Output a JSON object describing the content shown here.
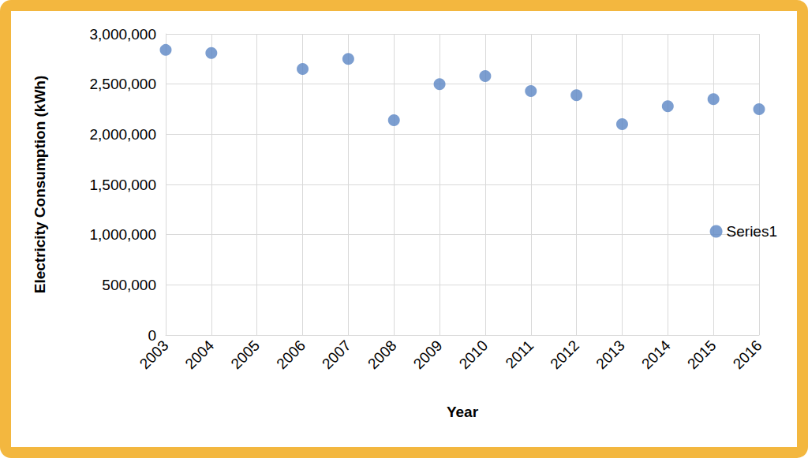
{
  "chart_data": {
    "type": "scatter",
    "x_label": "Year",
    "y_label": "Electricity Consumption (kWh)",
    "categories": [
      "2003",
      "2004",
      "2005",
      "2006",
      "2007",
      "2008",
      "2009",
      "2010",
      "2011",
      "2012",
      "2013",
      "2014",
      "2015",
      "2016"
    ],
    "series": [
      {
        "name": "Series1",
        "color": "#5b86c4",
        "marker": "circle",
        "values": [
          2840000,
          2810000,
          null,
          2650000,
          2750000,
          2140000,
          2500000,
          2580000,
          2430000,
          2390000,
          2100000,
          2280000,
          2350000,
          2250000
        ]
      }
    ],
    "ylim": [
      0,
      3000000
    ],
    "yticks": [
      0,
      {
        "value": 500000,
        "label": "500,000"
      },
      {
        "value": 1000000,
        "label": "1,000,000"
      },
      {
        "value": 1500000,
        "label": "1,500,000"
      },
      {
        "value": 2000000,
        "label": "2,000,000"
      },
      {
        "value": 2500000,
        "label": "2,500,000"
      },
      {
        "value": 3000000,
        "label": "3,000,000"
      }
    ],
    "grid": true,
    "legend": "right"
  }
}
